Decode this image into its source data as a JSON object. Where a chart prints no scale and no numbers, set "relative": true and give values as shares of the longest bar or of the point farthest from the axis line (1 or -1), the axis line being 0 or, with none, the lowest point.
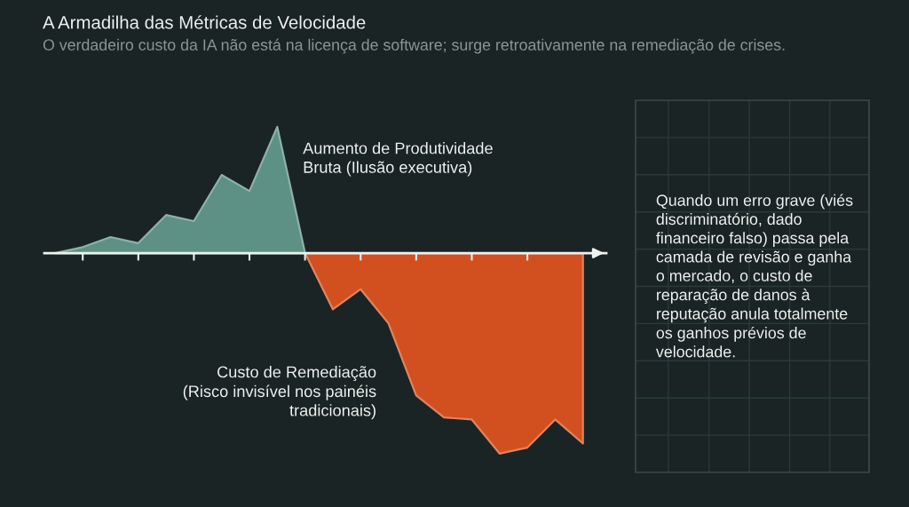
{
  "chart_data": [
    {
      "type": "area",
      "title": "A Armadilha das Métricas de Velocidade",
      "subtitle": "O verdadeiro custo da IA não está na licença de software; surge retroativamente na remediação de crises.",
      "categories": [
        null,
        null,
        null,
        null,
        null,
        null,
        null,
        null,
        null,
        null,
        null,
        null,
        null,
        null,
        null,
        null,
        null,
        null,
        null,
        null
      ],
      "relative": true,
      "series": [
        {
          "name": "Aumento de Produtividade\nBruta (Ilusão executiva)",
          "color": "#5e9185",
          "values": [
            0,
            0.03,
            0.08,
            0.05,
            0.19,
            0.16,
            0.39,
            0.31,
            0.63,
            0,
            null,
            null,
            null,
            null,
            null,
            null,
            null,
            null,
            null,
            null
          ]
        },
        {
          "name": "Custo de Remediação\n(Risco invisível nos painéis\ntradicionais)",
          "color": "#d2501f",
          "values": [
            null,
            null,
            null,
            null,
            null,
            null,
            null,
            null,
            null,
            0,
            -0.28,
            -0.18,
            -0.35,
            -0.71,
            -0.82,
            -0.83,
            -1,
            -0.97,
            -0.83,
            -0.95
          ]
        }
      ],
      "legend": false,
      "grid": false
    },
    {
      "type": "other",
      "annotations": [
        "Quando um erro grave (viés\ndiscriminatório, dado\nfinanceiro falso) passa pela\ncamada de revisão e ganha\no mercado, o custo de\nreparação de danos à\nreputação anula totalmente\nos ganhos prévios de\nvelocidade."
      ]
    }
  ]
}
